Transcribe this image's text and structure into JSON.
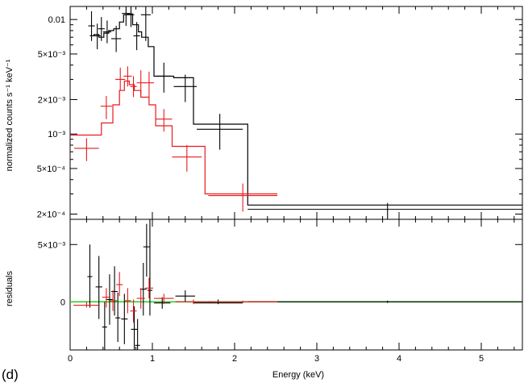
{
  "panel_label": "(d)",
  "colors": {
    "black": "#000000",
    "red": "#e8191e",
    "green": "#2fd12f"
  },
  "chart_data": [
    {
      "type": "scatter",
      "name_hint": "spectrum",
      "ylabel": "normalized counts s⁻¹ keV⁻¹",
      "xlabel": "",
      "xlim": [
        0,
        5.5
      ],
      "ylim": [
        0.00018,
        0.013
      ],
      "yscale": "log",
      "yticks": [
        {
          "value": 0.01,
          "label": "0.01"
        },
        {
          "value": 0.005,
          "label": "5×10⁻³"
        },
        {
          "value": 0.002,
          "label": "2×10⁻³"
        },
        {
          "value": 0.001,
          "label": "10⁻³"
        },
        {
          "value": 0.0005,
          "label": "5×10⁻⁴"
        },
        {
          "value": 0.0002,
          "label": "2×10⁻⁴"
        }
      ],
      "series": [
        {
          "color": "black",
          "points": [
            {
              "x": 0.26,
              "xerr": 0.04,
              "y": 0.0088,
              "ylo": 0.0065,
              "yhi": 0.0118
            },
            {
              "x": 0.33,
              "xerr": 0.04,
              "y": 0.0072,
              "ylo": 0.0055,
              "yhi": 0.0092
            },
            {
              "x": 0.38,
              "xerr": 0.04,
              "y": 0.0083,
              "ylo": 0.0065,
              "yhi": 0.0105
            },
            {
              "x": 0.45,
              "xerr": 0.05,
              "y": 0.0078,
              "ylo": 0.0062,
              "yhi": 0.0098
            },
            {
              "x": 0.56,
              "xerr": 0.06,
              "y": 0.0068,
              "ylo": 0.0052,
              "yhi": 0.0088
            },
            {
              "x": 0.68,
              "xerr": 0.05,
              "y": 0.0113,
              "ylo": 0.0088,
              "yhi": 0.0135
            },
            {
              "x": 0.74,
              "xerr": 0.04,
              "y": 0.011,
              "ylo": 0.0086,
              "yhi": 0.0135
            },
            {
              "x": 0.81,
              "xerr": 0.04,
              "y": 0.0072,
              "ylo": 0.0054,
              "yhi": 0.0095
            },
            {
              "x": 0.92,
              "xerr": 0.06,
              "y": 0.011,
              "ylo": 0.0065,
              "yhi": 0.0135
            },
            {
              "x": 1.14,
              "xerr": 0.09,
              "y": 0.0032,
              "ylo": 0.0023,
              "yhi": 0.0042
            },
            {
              "x": 1.4,
              "xerr": 0.14,
              "y": 0.0026,
              "ylo": 0.0019,
              "yhi": 0.0033
            },
            {
              "x": 1.82,
              "xerr": 0.28,
              "y": 0.0011,
              "ylo": 0.00073,
              "yhi": 0.0015
            },
            {
              "x": 3.86,
              "xerr": 1.7,
              "y": 0.00022,
              "ylo": 0.00018,
              "yhi": 0.00025
            }
          ],
          "model": [
            [
              0.24,
              0.0072
            ],
            [
              0.29,
              0.0072
            ],
            [
              0.29,
              0.0074
            ],
            [
              0.35,
              0.0074
            ],
            [
              0.35,
              0.007
            ],
            [
              0.41,
              0.007
            ],
            [
              0.41,
              0.0076
            ],
            [
              0.47,
              0.0076
            ],
            [
              0.47,
              0.008
            ],
            [
              0.53,
              0.008
            ],
            [
              0.53,
              0.0083
            ],
            [
              0.6,
              0.0083
            ],
            [
              0.6,
              0.0095
            ],
            [
              0.65,
              0.0095
            ],
            [
              0.65,
              0.011
            ],
            [
              0.7,
              0.011
            ],
            [
              0.7,
              0.0112
            ],
            [
              0.76,
              0.0112
            ],
            [
              0.76,
              0.009
            ],
            [
              0.83,
              0.009
            ],
            [
              0.83,
              0.0078
            ],
            [
              0.87,
              0.0078
            ],
            [
              0.87,
              0.007
            ],
            [
              0.95,
              0.007
            ],
            [
              0.95,
              0.0058
            ],
            [
              1.02,
              0.0058
            ],
            [
              1.02,
              0.0032
            ],
            [
              1.26,
              0.0032
            ],
            [
              1.26,
              0.0031
            ],
            [
              1.5,
              0.0031
            ],
            [
              1.5,
              0.00122
            ],
            [
              2.16,
              0.00122
            ],
            [
              2.16,
              0.00024
            ],
            [
              5.5,
              0.00024
            ]
          ]
        },
        {
          "color": "red",
          "points": [
            {
              "x": 0.2,
              "xerr": 0.15,
              "y": 0.00075,
              "ylo": 0.00058,
              "yhi": 0.00092
            },
            {
              "x": 0.44,
              "xerr": 0.07,
              "y": 0.00175,
              "ylo": 0.00135,
              "yhi": 0.00215
            },
            {
              "x": 0.61,
              "xerr": 0.06,
              "y": 0.003,
              "ylo": 0.0024,
              "yhi": 0.0038
            },
            {
              "x": 0.7,
              "xerr": 0.05,
              "y": 0.0032,
              "ylo": 0.0026,
              "yhi": 0.0039
            },
            {
              "x": 0.77,
              "xerr": 0.04,
              "y": 0.0026,
              "ylo": 0.0021,
              "yhi": 0.0032
            },
            {
              "x": 0.86,
              "xerr": 0.05,
              "y": 0.0028,
              "ylo": 0.0022,
              "yhi": 0.0036
            },
            {
              "x": 0.96,
              "xerr": 0.06,
              "y": 0.0028,
              "ylo": 0.0021,
              "yhi": 0.0035
            },
            {
              "x": 1.14,
              "xerr": 0.1,
              "y": 0.00135,
              "ylo": 0.00105,
              "yhi": 0.00165
            },
            {
              "x": 1.42,
              "xerr": 0.18,
              "y": 0.00063,
              "ylo": 0.00047,
              "yhi": 0.0008
            },
            {
              "x": 2.1,
              "xerr": 0.42,
              "y": 0.00029,
              "ylo": 0.00021,
              "yhi": 0.00037
            }
          ],
          "model": [
            [
              0.0,
              0.00098
            ],
            [
              0.38,
              0.00098
            ],
            [
              0.38,
              0.00125
            ],
            [
              0.52,
              0.00125
            ],
            [
              0.52,
              0.0018
            ],
            [
              0.6,
              0.0018
            ],
            [
              0.6,
              0.0024
            ],
            [
              0.66,
              0.0024
            ],
            [
              0.66,
              0.0029
            ],
            [
              0.72,
              0.0029
            ],
            [
              0.72,
              0.0027
            ],
            [
              0.78,
              0.0027
            ],
            [
              0.78,
              0.0024
            ],
            [
              0.86,
              0.0024
            ],
            [
              0.86,
              0.0021
            ],
            [
              0.96,
              0.0021
            ],
            [
              0.96,
              0.0018
            ],
            [
              1.04,
              0.0018
            ],
            [
              1.04,
              0.00118
            ],
            [
              1.24,
              0.00118
            ],
            [
              1.24,
              0.00078
            ],
            [
              1.64,
              0.00078
            ],
            [
              1.64,
              0.0003
            ],
            [
              2.52,
              0.0003
            ]
          ]
        }
      ]
    },
    {
      "type": "scatter",
      "name_hint": "residuals",
      "ylabel": "residuals",
      "xlabel": "Energy (keV)",
      "xlim": [
        0,
        5.5
      ],
      "ylim": [
        -0.0042,
        0.0072
      ],
      "yticks": [
        {
          "value": 0.005,
          "label": "5×10⁻³"
        },
        {
          "value": 0,
          "label": "0"
        }
      ],
      "xticks": [
        {
          "value": 0,
          "label": "0"
        },
        {
          "value": 1,
          "label": "1"
        },
        {
          "value": 2,
          "label": "2"
        },
        {
          "value": 3,
          "label": "3"
        },
        {
          "value": 4,
          "label": "4"
        },
        {
          "value": 5,
          "label": "5"
        }
      ],
      "zero_line_color": "green",
      "series": [
        {
          "color": "black",
          "points": [
            {
              "x": 0.24,
              "xerr": 0.03,
              "y": 0.0022,
              "ylo": -0.0005,
              "yhi": 0.005
            },
            {
              "x": 0.35,
              "xerr": 0.04,
              "y": 0.0013,
              "ylo": -0.0015,
              "yhi": 0.004
            },
            {
              "x": 0.42,
              "xerr": 0.03,
              "y": -0.0022,
              "ylo": -0.0042,
              "yhi": 0.0
            },
            {
              "x": 0.48,
              "xerr": 0.04,
              "y": 0.0002,
              "ylo": -0.002,
              "yhi": 0.0024
            },
            {
              "x": 0.54,
              "xerr": 0.04,
              "y": 0.0009,
              "ylo": -0.0012,
              "yhi": 0.0031
            },
            {
              "x": 0.58,
              "xerr": 0.03,
              "y": -0.0014,
              "ylo": -0.0035,
              "yhi": 0.0008
            },
            {
              "x": 0.66,
              "xerr": 0.04,
              "y": -0.0015,
              "ylo": -0.0037,
              "yhi": 0.0007
            },
            {
              "x": 0.78,
              "xerr": 0.04,
              "y": -0.0024,
              "ylo": -0.0042,
              "yhi": -0.0004
            },
            {
              "x": 0.82,
              "xerr": 0.03,
              "y": -0.0038,
              "ylo": -0.0042,
              "yhi": -0.0015
            },
            {
              "x": 0.89,
              "xerr": 0.04,
              "y": 0.0011,
              "ylo": -0.0012,
              "yhi": 0.0034
            },
            {
              "x": 0.93,
              "xerr": 0.04,
              "y": 0.0048,
              "ylo": 0.0022,
              "yhi": 0.0068
            },
            {
              "x": 0.97,
              "xerr": 0.03,
              "y": 0.001,
              "ylo": -0.0012,
              "yhi": 0.0072
            },
            {
              "x": 1.12,
              "xerr": 0.1,
              "y": -0.0001,
              "ylo": -0.0006,
              "yhi": 0.0004
            },
            {
              "x": 1.4,
              "xerr": 0.12,
              "y": 0.0005,
              "ylo": 0.0,
              "yhi": 0.001
            },
            {
              "x": 1.8,
              "xerr": 0.3,
              "y": -0.0001,
              "ylo": -0.0002,
              "yhi": 0.0002
            },
            {
              "x": 3.86,
              "xerr": 1.7,
              "y": 0.0,
              "ylo": -0.0001,
              "yhi": 0.0001
            }
          ]
        },
        {
          "color": "red",
          "points": [
            {
              "x": 0.2,
              "xerr": 0.16,
              "y": -0.0003,
              "ylo": -0.0005,
              "yhi": 0.0
            },
            {
              "x": 0.44,
              "xerr": 0.05,
              "y": 0.0004,
              "ylo": -0.0005,
              "yhi": 0.0012
            },
            {
              "x": 0.52,
              "xerr": 0.05,
              "y": 0.0001,
              "ylo": -0.0008,
              "yhi": 0.001
            },
            {
              "x": 0.6,
              "xerr": 0.04,
              "y": 0.0015,
              "ylo": 0.0005,
              "yhi": 0.0026
            },
            {
              "x": 0.7,
              "xerr": 0.04,
              "y": 0.0001,
              "ylo": -0.001,
              "yhi": 0.0012
            },
            {
              "x": 0.77,
              "xerr": 0.04,
              "y": -0.0008,
              "ylo": -0.0018,
              "yhi": 0.0002
            },
            {
              "x": 0.86,
              "xerr": 0.05,
              "y": 0.0003,
              "ylo": -0.0006,
              "yhi": 0.0012
            },
            {
              "x": 0.96,
              "xerr": 0.05,
              "y": 0.0012,
              "ylo": 0.0003,
              "yhi": 0.0021
            },
            {
              "x": 1.14,
              "xerr": 0.12,
              "y": 0.0003,
              "ylo": -0.0002,
              "yhi": 0.0007
            },
            {
              "x": 1.5,
              "xerr": 0.22,
              "y": 0.0,
              "ylo": -0.0002,
              "yhi": 0.0002
            },
            {
              "x": 2.1,
              "xerr": 0.42,
              "y": 0.0,
              "ylo": -0.0001,
              "yhi": 0.0001
            }
          ]
        }
      ]
    }
  ]
}
